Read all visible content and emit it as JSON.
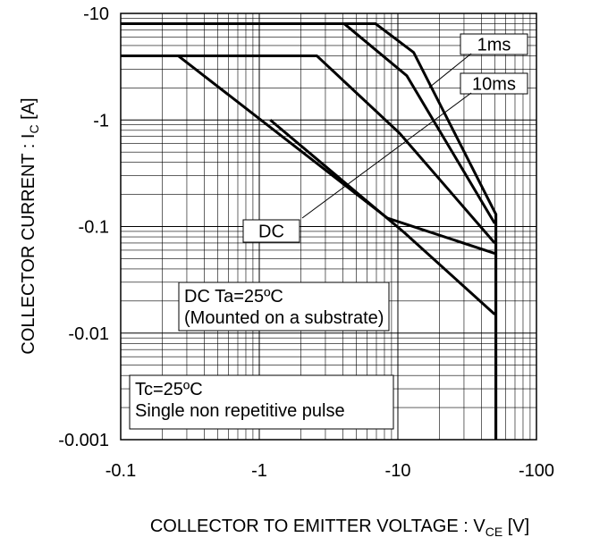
{
  "chart_data": {
    "type": "line",
    "log_x": true,
    "log_y": true,
    "grid": true,
    "x_label": [
      "COLLECTOR TO EMITTER VOLTAGE : V",
      "CE",
      " [V]"
    ],
    "y_label": [
      "COLLECTOR CURRENT : I",
      "C",
      " [A]"
    ],
    "xlim": [
      -0.1,
      -100
    ],
    "xticks": [
      -0.1,
      -1,
      -10,
      -100
    ],
    "ylim": [
      -0.001,
      -10
    ],
    "yticks": [
      -0.001,
      -0.01,
      -0.1,
      -1,
      -10
    ],
    "series": [
      {
        "color": "#000000",
        "x": [
          -0.1,
          -6.9,
          -13,
          -51,
          -51
        ],
        "values": [
          -8,
          -8,
          -4.3,
          -0.13,
          -0.001
        ]
      },
      {
        "color": "#000000",
        "x": [
          -0.1,
          -4.1,
          -11.6,
          -50
        ],
        "values": [
          -8,
          -8,
          -2.6,
          -0.107
        ]
      },
      {
        "color": "#000000",
        "x": [
          -0.1,
          -2.6,
          -10.3,
          -50
        ],
        "values": [
          -4,
          -4,
          -0.75,
          -0.07
        ]
      },
      {
        "color": "#000000",
        "x": [
          -0.1,
          -0.26,
          -8.4,
          -50
        ],
        "values": [
          -4,
          -4,
          -0.12,
          -0.056
        ]
      },
      {
        "color": "#000000",
        "x": [
          -1.2,
          -11.1,
          -50
        ],
        "values": [
          -1,
          -0.088,
          -0.015
        ]
      }
    ],
    "annotations": [
      {
        "text": [
          "1ms"
        ]
      },
      {
        "text": [
          "10ms"
        ]
      },
      {
        "text": [
          "DC"
        ]
      },
      {
        "text": [
          "DC Ta=25ºC",
          "(Mounted on a substrate)"
        ]
      },
      {
        "text": [
          "Tc=25ºC",
          "Single non repetitive pulse"
        ]
      }
    ]
  }
}
